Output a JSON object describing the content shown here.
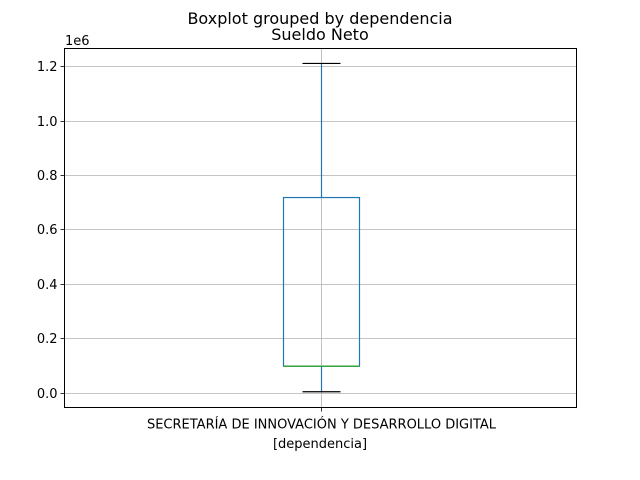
{
  "chart_data": {
    "type": "box",
    "suptitle": "Boxplot grouped by dependencia",
    "title": "Sueldo Neto",
    "xlabel": "[dependencia]",
    "ylabel": "",
    "y_offset_label": "1e6",
    "categories": [
      "SECRETARÍA DE INNOVACIÓN Y DESARROLLO DIGITAL"
    ],
    "boxes": [
      {
        "category": "SECRETARÍA DE INNOVACIÓN Y DESARROLLO DIGITAL",
        "whisker_low": 0.003,
        "q1": 0.097,
        "median": 0.097,
        "q3": 0.717,
        "whisker_high": 1.21
      }
    ],
    "ylim": [
      -0.055,
      1.265
    ],
    "yticks": [
      0.0,
      0.2,
      0.4,
      0.6,
      0.8,
      1.0,
      1.2
    ],
    "ytick_labels": [
      "0.0",
      "0.2",
      "0.4",
      "0.6",
      "0.8",
      "1.0",
      "1.2"
    ],
    "grid": true,
    "colors": {
      "box": "#1f77b4",
      "median": "#2ca02c",
      "whisker": "#1f77b4",
      "cap": "#000000",
      "grid": "#b0b0b0"
    }
  }
}
